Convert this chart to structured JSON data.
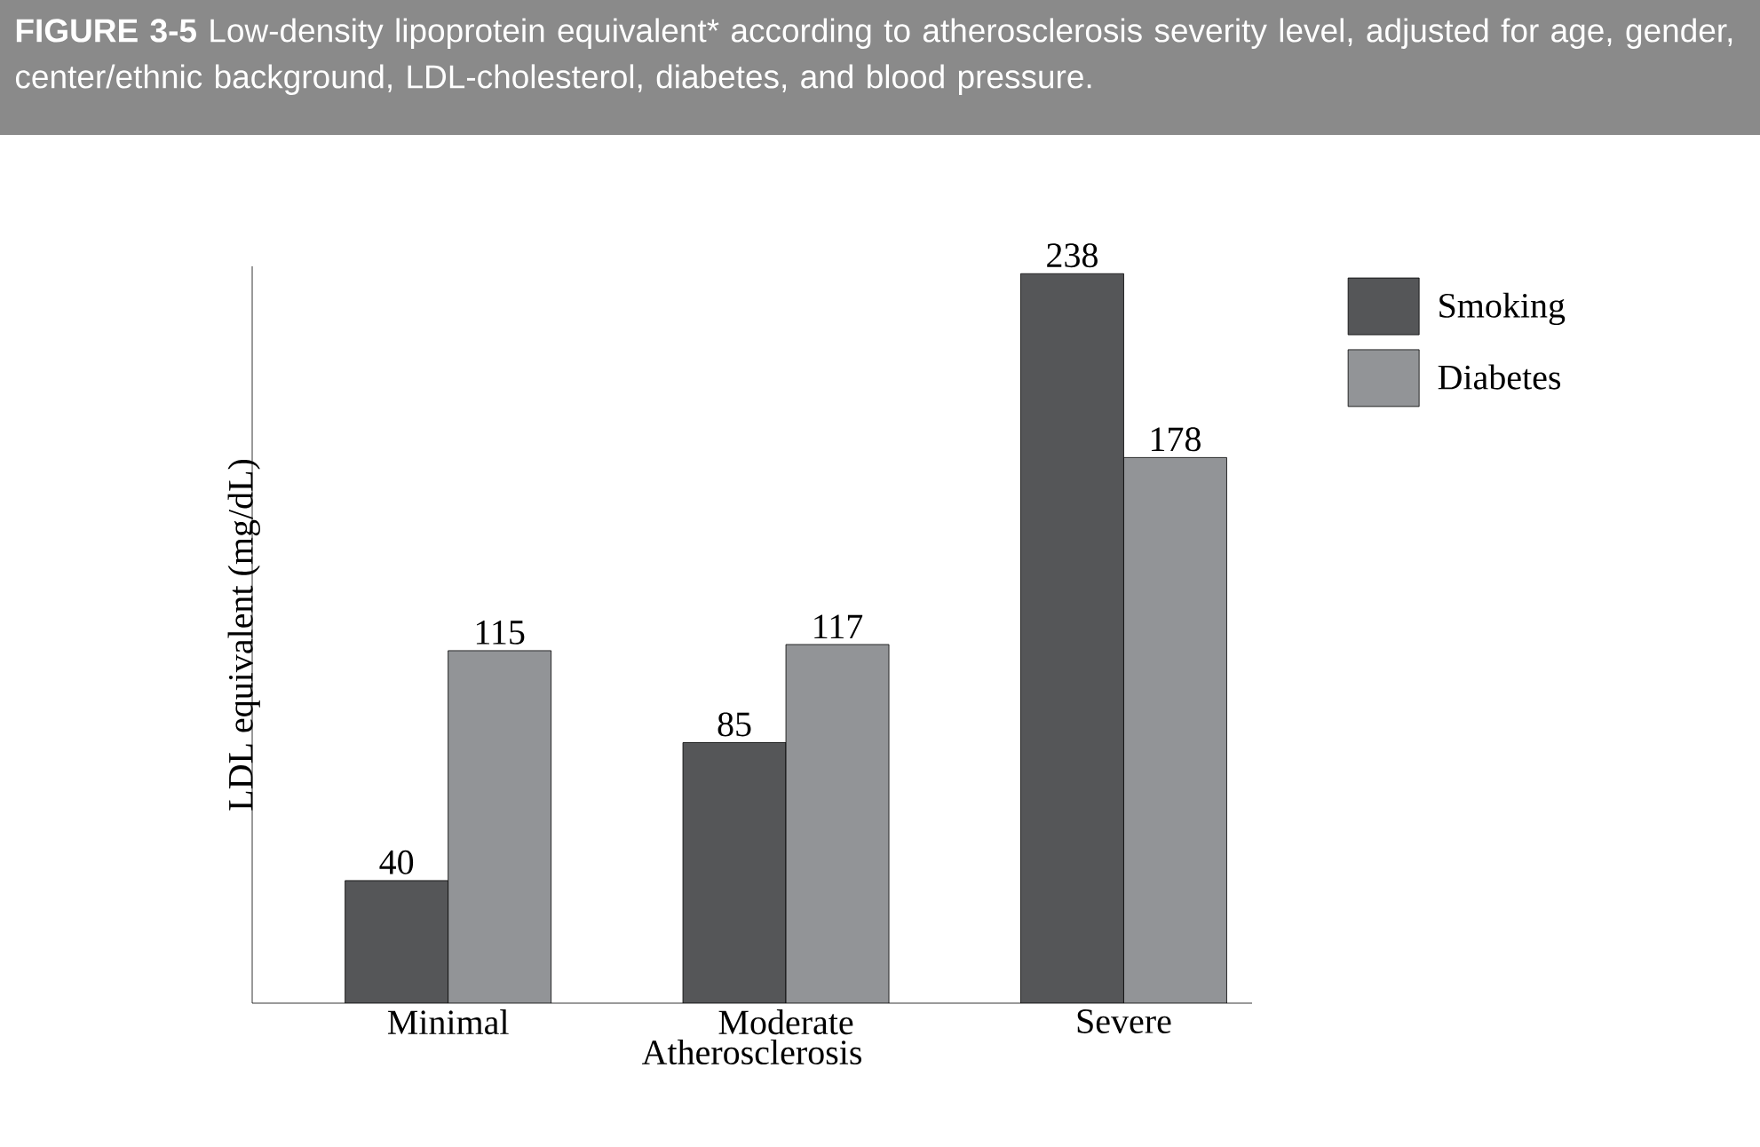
{
  "chart_data": {
    "type": "bar",
    "title": "**FIGURE 3-5** Low-density lipoprotein equivalent* according to atherosclerosis severity level, adjusted for age, gender, center/ethnic background, LDL-cholesterol, diabetes, and blood pressure.",
    "xlabel": "Atherosclerosis",
    "ylabel": "LDL equivalent (mg/dL)",
    "categories": [
      "Minimal",
      "Moderate",
      "Severe"
    ],
    "series": [
      {
        "name": "Smoking",
        "color": "#555658",
        "values": [
          40,
          85,
          238
        ]
      },
      {
        "name": "Diabetes",
        "color": "#929497",
        "values": [
          115,
          117,
          178
        ]
      }
    ],
    "data_labels": true,
    "legend": "top right"
  }
}
